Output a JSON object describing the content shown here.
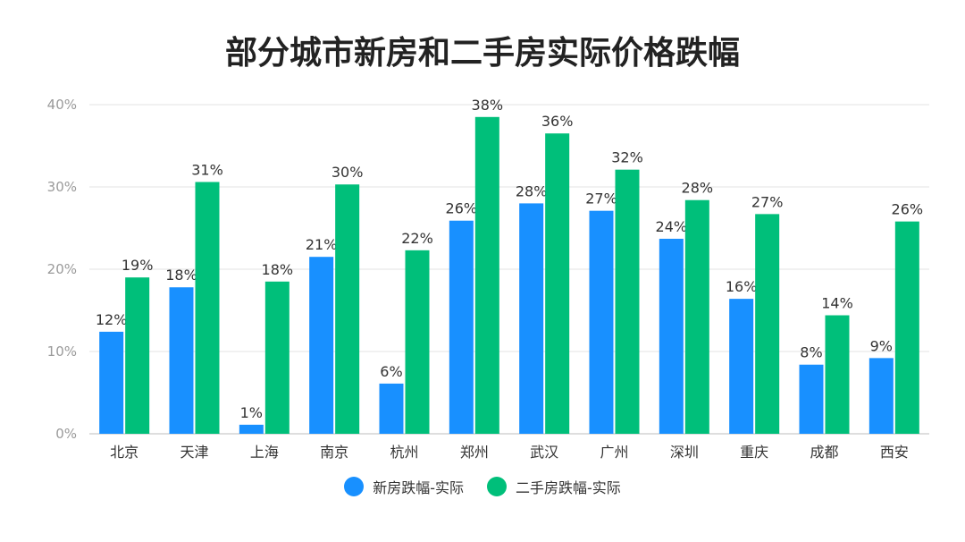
{
  "chart_data": {
    "type": "bar",
    "title": "部分城市新房和二手房实际价格跌幅",
    "categories": [
      "北京",
      "天津",
      "上海",
      "南京",
      "杭州",
      "郑州",
      "武汉",
      "广州",
      "深圳",
      "重庆",
      "成都",
      "西安"
    ],
    "series": [
      {
        "name": "新房跌幅-实际",
        "color": "#1890ff",
        "values": [
          12.4,
          17.8,
          1.1,
          21.5,
          6.1,
          25.9,
          28.0,
          27.1,
          23.7,
          16.4,
          8.4,
          9.2
        ],
        "labels": [
          "12%",
          "18%",
          "1%",
          "21%",
          "6%",
          "26%",
          "28%",
          "27%",
          "24%",
          "16%",
          "8%",
          "9%"
        ]
      },
      {
        "name": "二手房跌幅-实际",
        "color": "#00bf7a",
        "values": [
          19.0,
          30.6,
          18.5,
          30.3,
          22.3,
          38.5,
          36.5,
          32.1,
          28.4,
          26.7,
          14.4,
          25.8
        ],
        "labels": [
          "19%",
          "31%",
          "18%",
          "30%",
          "22%",
          "38%",
          "36%",
          "32%",
          "28%",
          "27%",
          "14%",
          "26%"
        ]
      }
    ],
    "ylim": [
      0,
      40
    ],
    "yticks": [
      0,
      10,
      20,
      30,
      40
    ],
    "ytick_labels": [
      "0%",
      "10%",
      "20%",
      "30%",
      "40%"
    ],
    "grid": true,
    "legend_position": "bottom"
  }
}
